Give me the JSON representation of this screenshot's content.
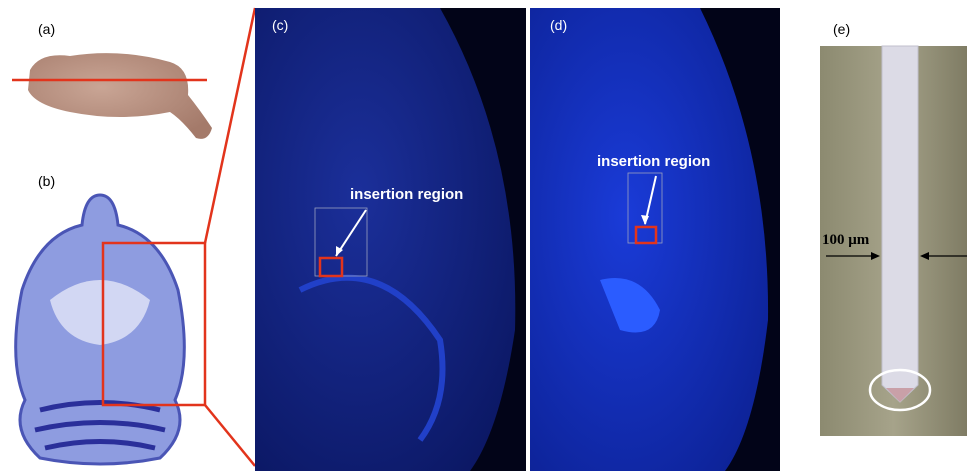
{
  "panels": [
    {
      "label": "(a)"
    },
    {
      "label": "(b)"
    },
    {
      "label": "(c)",
      "annotation": "insertion region"
    },
    {
      "label": "(d)",
      "annotation": "insertion region"
    },
    {
      "label": "(e)",
      "scale": "100 μm"
    }
  ]
}
